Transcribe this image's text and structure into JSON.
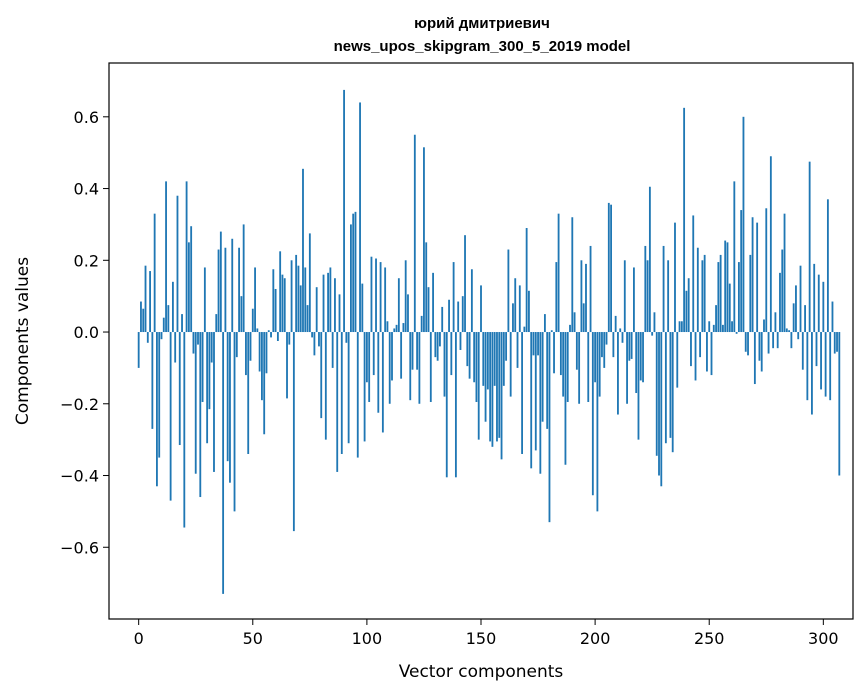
{
  "chart_data": {
    "type": "bar",
    "title": "юрий дмитриевич",
    "subtitle": "news_upos_skipgram_300_5_2019 model",
    "xlabel": "Vector components",
    "ylabel": "Components values",
    "xlim": [
      -13,
      313
    ],
    "ylim": [
      -0.8,
      0.75
    ],
    "x_ticks": [
      0,
      50,
      100,
      150,
      200,
      250,
      300
    ],
    "x_tick_labels": [
      "0",
      "50",
      "100",
      "150",
      "200",
      "250",
      "300"
    ],
    "y_ticks": [
      -0.6,
      -0.4,
      -0.2,
      0.0,
      0.2,
      0.4,
      0.6
    ],
    "y_tick_labels": [
      "−0.6",
      "−0.4",
      "−0.2",
      "0.0",
      "0.2",
      "0.4",
      "0.6"
    ],
    "grid": false,
    "bar_color": "#1f77b4",
    "values": [
      -0.1,
      0.085,
      0.065,
      0.185,
      -0.03,
      0.17,
      -0.27,
      0.33,
      -0.43,
      -0.35,
      -0.02,
      0.04,
      0.42,
      0.075,
      -0.47,
      0.14,
      -0.085,
      0.38,
      -0.315,
      0.05,
      -0.545,
      0.42,
      0.25,
      0.295,
      -0.06,
      -0.395,
      -0.035,
      -0.46,
      -0.195,
      0.18,
      -0.31,
      -0.215,
      -0.085,
      -0.39,
      0.05,
      0.23,
      0.28,
      -0.73,
      0.235,
      -0.36,
      -0.42,
      0.26,
      -0.5,
      -0.07,
      0.235,
      0.1,
      0.3,
      -0.12,
      -0.34,
      -0.08,
      0.065,
      0.18,
      0.01,
      -0.11,
      -0.19,
      -0.285,
      -0.115,
      0.005,
      -0.015,
      0.175,
      0.12,
      -0.025,
      0.225,
      0.16,
      0.15,
      -0.185,
      -0.035,
      0.2,
      -0.555,
      0.215,
      0.185,
      0.13,
      0.455,
      0.18,
      0.075,
      0.275,
      -0.015,
      -0.065,
      0.125,
      -0.04,
      -0.24,
      0.16,
      -0.3,
      0.165,
      0.18,
      -0.1,
      0.15,
      -0.39,
      0.105,
      -0.34,
      0.675,
      -0.03,
      -0.31,
      0.3,
      0.33,
      0.335,
      -0.35,
      0.64,
      0.135,
      -0.305,
      -0.14,
      -0.195,
      0.21,
      -0.12,
      0.205,
      -0.225,
      0.195,
      -0.28,
      0.18,
      0.03,
      -0.2,
      -0.135,
      0.01,
      0.02,
      0.15,
      -0.13,
      0.025,
      0.2,
      0.105,
      -0.19,
      -0.105,
      0.55,
      -0.105,
      -0.2,
      0.045,
      0.515,
      0.25,
      0.125,
      -0.195,
      0.165,
      -0.07,
      -0.08,
      -0.04,
      0.07,
      -0.18,
      -0.405,
      0.09,
      -0.12,
      0.195,
      -0.405,
      0.085,
      -0.05,
      0.1,
      0.27,
      -0.095,
      -0.13,
      0.175,
      -0.14,
      -0.195,
      -0.3,
      0.13,
      -0.15,
      -0.25,
      -0.16,
      -0.305,
      -0.32,
      -0.15,
      -0.305,
      -0.295,
      -0.355,
      -0.15,
      -0.08,
      0.23,
      -0.18,
      0.08,
      0.15,
      -0.1,
      0.13,
      -0.34,
      0.015,
      0.29,
      0.115,
      -0.38,
      -0.065,
      -0.33,
      -0.065,
      -0.395,
      -0.25,
      0.05,
      -0.27,
      -0.53,
      0.005,
      -0.115,
      0.195,
      0.33,
      -0.12,
      -0.18,
      -0.37,
      -0.195,
      0.02,
      0.32,
      0.055,
      -0.105,
      -0.2,
      0.2,
      0.08,
      0.19,
      -0.195,
      0.24,
      -0.455,
      -0.14,
      -0.5,
      -0.18,
      -0.07,
      -0.1,
      -0.035,
      0.36,
      0.355,
      -0.07,
      0.045,
      -0.23,
      0.01,
      -0.03,
      0.2,
      -0.2,
      -0.08,
      -0.075,
      0.18,
      -0.17,
      -0.3,
      -0.135,
      -0.14,
      0.24,
      0.2,
      0.405,
      -0.01,
      0.055,
      -0.345,
      -0.4,
      -0.43,
      0.24,
      -0.31,
      0.2,
      -0.295,
      -0.335,
      0.305,
      -0.155,
      0.03,
      0.03,
      0.625,
      0.115,
      0.15,
      -0.095,
      0.325,
      -0.135,
      0.235,
      -0.07,
      0.2,
      0.215,
      -0.11,
      0.03,
      -0.12,
      0.02,
      0.075,
      0.195,
      0.215,
      0.02,
      0.255,
      0.25,
      0.135,
      0.03,
      0.42,
      -0.005,
      0.195,
      0.34,
      0.6,
      -0.055,
      -0.065,
      0.215,
      0.32,
      -0.145,
      0.305,
      -0.08,
      -0.11,
      0.035,
      0.345,
      -0.06,
      0.49,
      -0.045,
      0.055,
      -0.045,
      0.165,
      0.23,
      0.33,
      0.01,
      0.005,
      -0.045,
      0.08,
      0.13,
      -0.02,
      0.185,
      -0.105,
      0.075,
      -0.19,
      0.475,
      -0.23,
      0.19,
      -0.095,
      0.16,
      -0.16,
      0.14,
      -0.18,
      0.37,
      -0.19,
      0.085,
      -0.06,
      -0.055,
      -0.4
    ]
  }
}
